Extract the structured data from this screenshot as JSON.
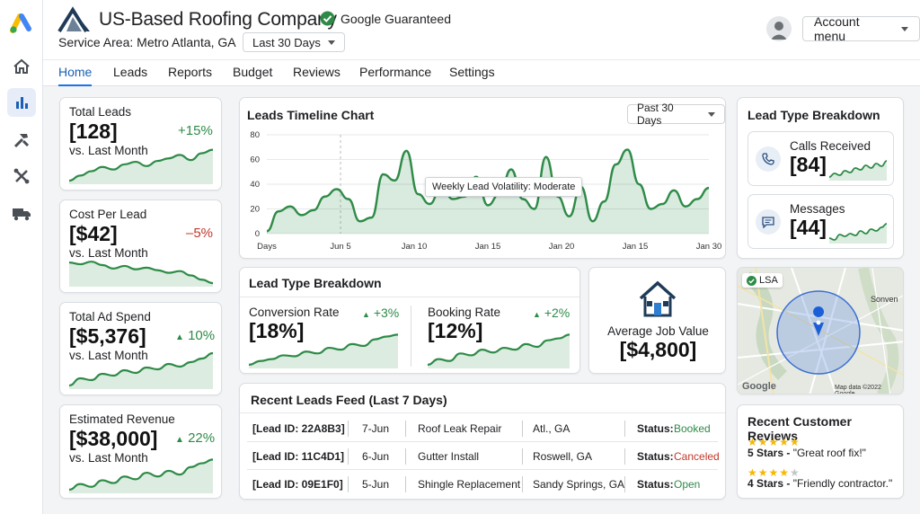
{
  "rail": {
    "items": [
      {
        "name": "ads-logo-icon"
      },
      {
        "name": "home-icon"
      },
      {
        "name": "reports-icon",
        "active": true
      },
      {
        "name": "tools-icon"
      },
      {
        "name": "settings-icon"
      },
      {
        "name": "truck-icon"
      }
    ]
  },
  "header": {
    "company": "US-Based Roofing Company",
    "guaranteed": "Google Guaranteed",
    "service_area": "Service Area: Metro Atlanta, GA",
    "date_range": "Last 30 Days",
    "account_menu": "Account menu"
  },
  "nav": {
    "tabs": [
      "Home",
      "Leads",
      "Reports",
      "Budget",
      "Reviews",
      "Performance",
      "Settings"
    ],
    "active": "Home"
  },
  "kpis": {
    "total_leads": {
      "label": "Total Leads",
      "value": "[128]",
      "sub": "vs. Last Month",
      "change": "+15%"
    },
    "cost_per_lead": {
      "label": "Cost Per Lead",
      "value": "[$42]",
      "sub": "vs. Last Month",
      "change": "–5%"
    },
    "ad_spend": {
      "label": "Total Ad Spend",
      "value": "[$5,376]",
      "sub": "vs. Last Month",
      "change": "10%"
    },
    "revenue": {
      "label": "Estimated Revenue",
      "value": "[$38,000]",
      "sub": "vs. Last Month",
      "change": "22%"
    }
  },
  "timeline": {
    "title": "Leads Timeline Chart",
    "range": "Past 30 Days",
    "tooltip": "Weekly Lead Volatility: Moderate",
    "chart_data": {
      "type": "line",
      "x_ticks": [
        "Days",
        "Jun 5",
        "Jan 10",
        "Jan 15",
        "Jan 20",
        "Jan 15",
        "Jan 30"
      ],
      "y_ticks": [
        "80",
        "60",
        "40",
        "20",
        "0"
      ],
      "ylim": [
        0,
        80
      ],
      "values": [
        2,
        18,
        22,
        15,
        19,
        30,
        36,
        28,
        10,
        13,
        48,
        43,
        67,
        32,
        24,
        38,
        28,
        30,
        46,
        23,
        32,
        52,
        28,
        20,
        62,
        30,
        14,
        38,
        10,
        26,
        56,
        68,
        40,
        20,
        24,
        35,
        22,
        28,
        37
      ],
      "grid": true
    }
  },
  "lead_type_top": {
    "title": "Lead Type Breakdown",
    "conv_label": "Conversion Rate",
    "conv_value": "[18%]",
    "conv_change": "+3%",
    "book_label": "Booking Rate",
    "book_value": "[12%]",
    "book_change": "+2%"
  },
  "avg_job": {
    "label": "Average Job Value",
    "value": "[$4,800]"
  },
  "feed": {
    "title": "Recent Leads Feed (Last 7 Days)",
    "status_label": "Status:",
    "rows": [
      {
        "id": "[Lead ID: 22A8B3]",
        "date": "7-Jun",
        "service": "Roof Leak Repair",
        "city": "Atl., GA",
        "status": "Booked",
        "color": "#2e8b47"
      },
      {
        "id": "[Lead ID: 11C4D1]",
        "date": "6-Jun",
        "service": "Gutter Install",
        "city": "Roswell, GA",
        "status": "Canceled",
        "color": "#c0392b"
      },
      {
        "id": "[Lead ID: 09E1F0]",
        "date": "5-Jun",
        "service": "Shingle Replacement",
        "city": "Sandy Springs, GA",
        "status": "Open",
        "color": "#2e8b47"
      }
    ]
  },
  "lead_type_right": {
    "title": "Lead Type Breakdown",
    "calls_label": "Calls Received",
    "calls_value": "[84]",
    "msg_label": "Messages",
    "msg_value": "[44]"
  },
  "map": {
    "badge": "LSA",
    "town": "Sonven",
    "google": "Google",
    "credit": "Map data ©2022 Google"
  },
  "reviews": {
    "title": "Recent Customer Reviews",
    "items": [
      {
        "stars": 5,
        "rating": "5 Stars -",
        "quote": "\"Great roof fix!\""
      },
      {
        "stars": 4,
        "rating": "4 Stars -",
        "quote": "\"Friendly contractor.\""
      }
    ]
  },
  "colors": {
    "accent": "#1a73e8",
    "green": "#2e8b47",
    "red": "#c0392b",
    "spark": "#2e8b47"
  }
}
